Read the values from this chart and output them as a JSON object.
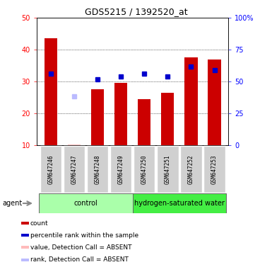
{
  "title": "GDS5215 / 1392520_at",
  "samples": [
    "GSM647246",
    "GSM647247",
    "GSM647248",
    "GSM647249",
    "GSM647250",
    "GSM647251",
    "GSM647252",
    "GSM647253"
  ],
  "bar_heights": [
    43.5,
    10.3,
    27.5,
    29.5,
    24.5,
    26.5,
    37.5,
    37.0
  ],
  "bar_absent": [
    false,
    true,
    false,
    false,
    false,
    false,
    false,
    false
  ],
  "blue_dots_y": [
    32.5,
    null,
    30.7,
    31.5,
    32.5,
    31.5,
    34.8,
    33.5
  ],
  "blue_absent_dots_y": [
    null,
    25.5,
    null,
    null,
    null,
    null,
    null,
    null
  ],
  "ylim": [
    10,
    50
  ],
  "y2lim": [
    0,
    100
  ],
  "y_ticks": [
    10,
    20,
    30,
    40,
    50
  ],
  "y2_ticks": [
    0,
    25,
    50,
    75,
    100
  ],
  "y2_tick_labels": [
    "0",
    "25",
    "50",
    "75",
    "100%"
  ],
  "control_color": "#aaffaa",
  "h2_color": "#44ee44",
  "legend_colors": [
    "#cc0000",
    "#0000cc",
    "#ffbbbb",
    "#bbbbff"
  ],
  "legend_labels": [
    "count",
    "percentile rank within the sample",
    "value, Detection Call = ABSENT",
    "rank, Detection Call = ABSENT"
  ]
}
